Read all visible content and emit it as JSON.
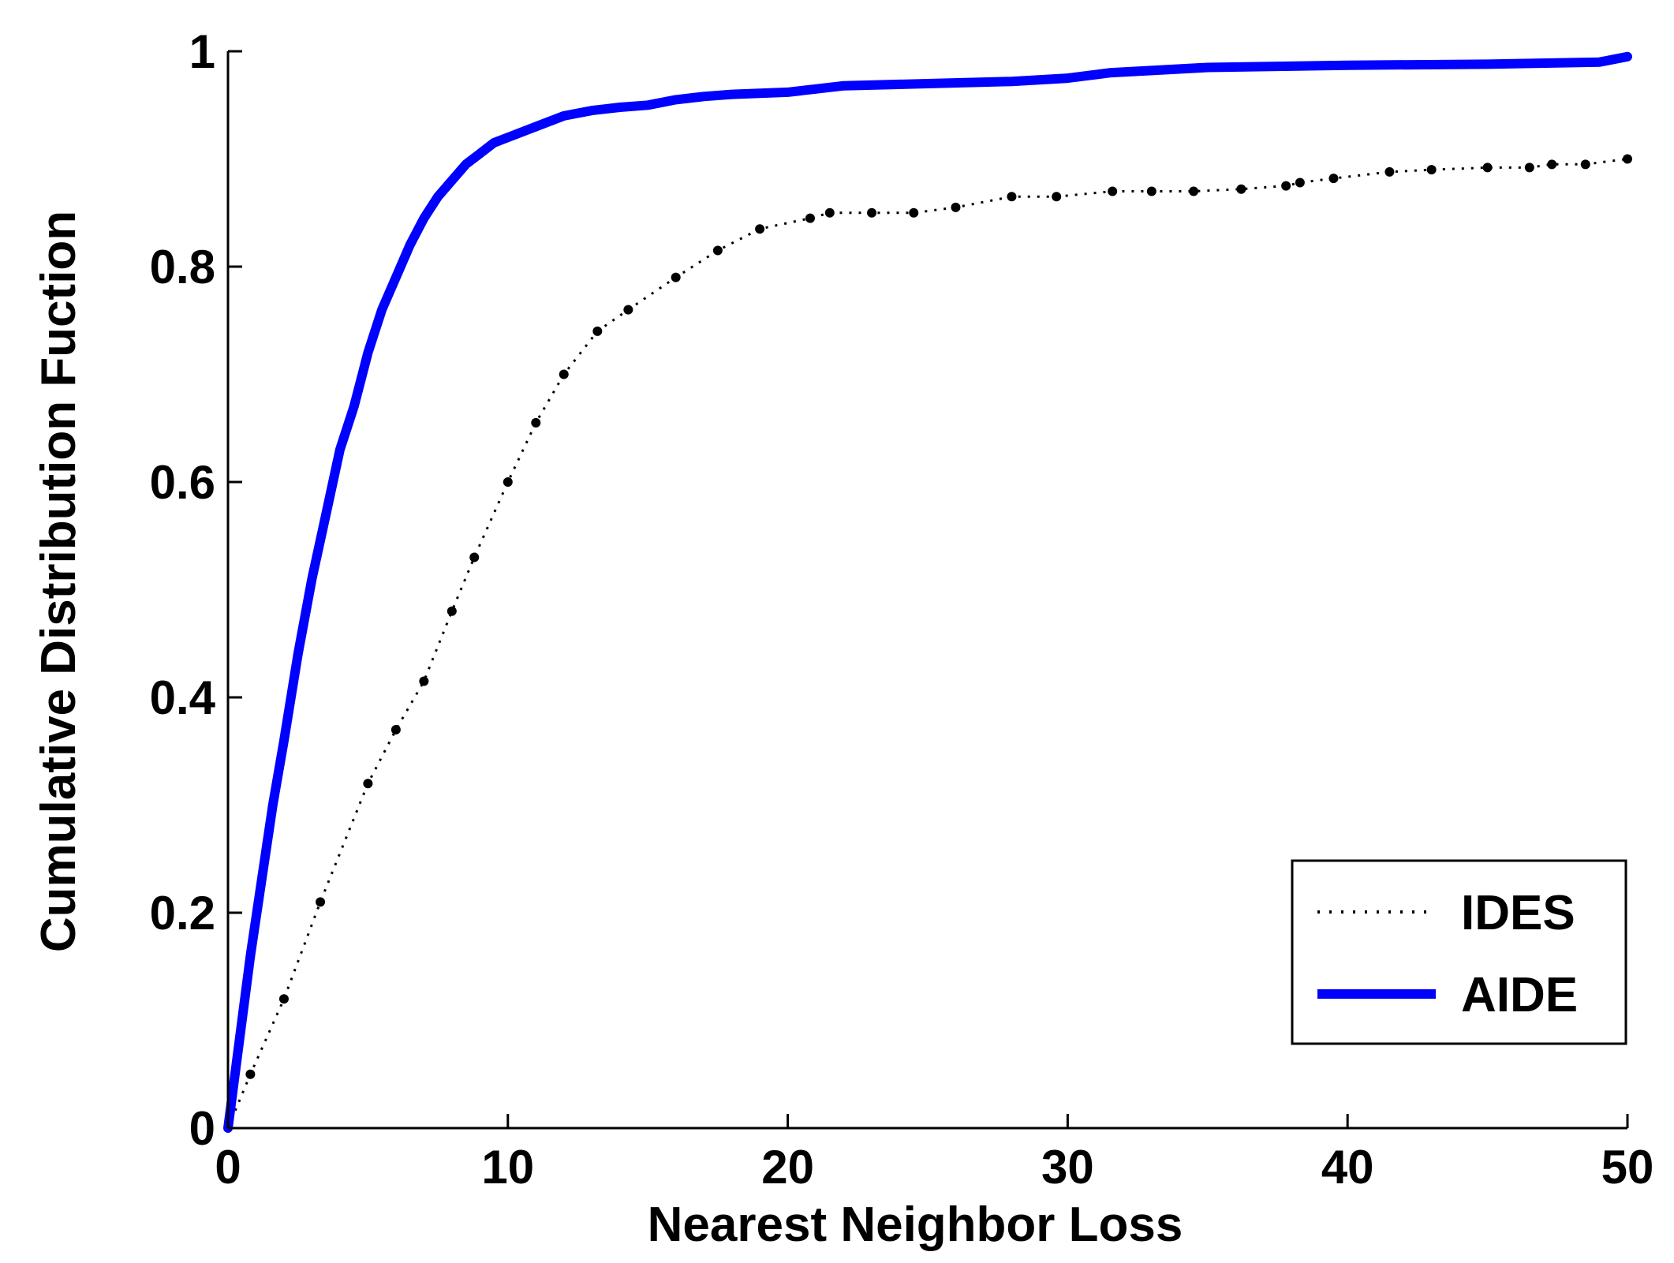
{
  "chart_data": {
    "type": "line",
    "title": "",
    "xlabel": "Nearest Neighbor Loss",
    "ylabel": "Cumulative Distribution Fuction",
    "xlim": [
      0,
      50
    ],
    "ylim": [
      0,
      1
    ],
    "x_ticks": [
      "0",
      "10",
      "20",
      "30",
      "40",
      "50"
    ],
    "y_ticks": [
      "0",
      "0.2",
      "0.4",
      "0.6",
      "0.8",
      "1"
    ],
    "grid": false,
    "legend_position": "bottom-right",
    "series": [
      {
        "name": "IDES",
        "color": "#000000",
        "style": "dotted",
        "x": [
          0,
          0.8,
          2.0,
          3.3,
          5.0,
          6.0,
          7.0,
          8.0,
          8.8,
          10.0,
          11.0,
          12.0,
          13.2,
          14.3,
          16.0,
          17.5,
          19.0,
          20.8,
          21.5,
          23.0,
          24.5,
          26.0,
          28.0,
          29.6,
          31.6,
          33.0,
          34.5,
          36.2,
          37.8,
          38.3,
          39.5,
          41.5,
          43.0,
          45.0,
          46.5,
          47.3,
          48.5,
          50.0
        ],
        "y": [
          0,
          0.05,
          0.12,
          0.21,
          0.32,
          0.37,
          0.415,
          0.48,
          0.53,
          0.6,
          0.655,
          0.7,
          0.74,
          0.76,
          0.79,
          0.815,
          0.835,
          0.845,
          0.85,
          0.85,
          0.85,
          0.855,
          0.865,
          0.865,
          0.87,
          0.87,
          0.87,
          0.872,
          0.875,
          0.878,
          0.882,
          0.888,
          0.89,
          0.892,
          0.892,
          0.895,
          0.895,
          0.9
        ]
      },
      {
        "name": "AIDE",
        "color": "#0000ff",
        "style": "solid",
        "x": [
          0,
          0.4,
          0.8,
          1.2,
          1.6,
          2.0,
          2.5,
          3.0,
          3.5,
          4.0,
          4.5,
          5.0,
          5.5,
          6.0,
          6.5,
          7.0,
          7.5,
          8.0,
          8.5,
          9.0,
          9.5,
          10.0,
          11.0,
          12.0,
          13.0,
          14.0,
          15.0,
          16.0,
          17.0,
          18.0,
          20.0,
          21.0,
          22.0,
          25.0,
          28.0,
          30.0,
          31.5,
          35.0,
          40.0,
          45.0,
          49.0,
          50.0
        ],
        "y": [
          0,
          0.08,
          0.16,
          0.23,
          0.3,
          0.36,
          0.44,
          0.51,
          0.57,
          0.63,
          0.67,
          0.72,
          0.76,
          0.79,
          0.82,
          0.845,
          0.865,
          0.88,
          0.895,
          0.905,
          0.915,
          0.92,
          0.93,
          0.94,
          0.945,
          0.948,
          0.95,
          0.955,
          0.958,
          0.96,
          0.962,
          0.965,
          0.968,
          0.97,
          0.972,
          0.975,
          0.98,
          0.985,
          0.987,
          0.988,
          0.99,
          0.995
        ]
      }
    ]
  }
}
